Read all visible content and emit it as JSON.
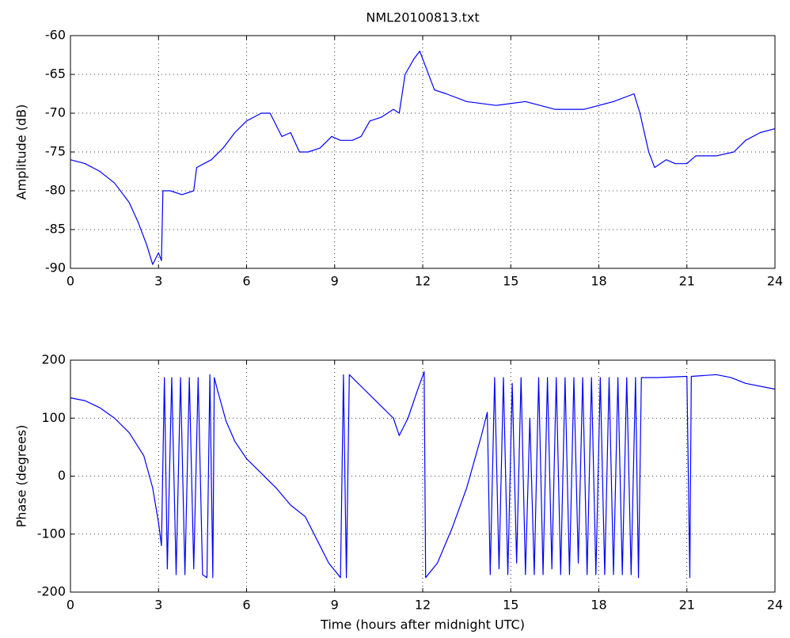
{
  "chart_data": [
    {
      "type": "line",
      "title": "NML20100813.txt",
      "ylabel": "Amplitude (dB)",
      "color": "#0000ff",
      "grid": true,
      "x": [
        0,
        0.5,
        1,
        1.5,
        2,
        2.3,
        2.6,
        2.8,
        3.0,
        3.1,
        3.15,
        3.4,
        3.8,
        4.2,
        4.3,
        4.8,
        5.2,
        5.6,
        6.0,
        6.5,
        6.8,
        7.2,
        7.5,
        7.8,
        8.1,
        8.5,
        8.9,
        9.2,
        9.6,
        9.9,
        10.2,
        10.6,
        11.0,
        11.2,
        11.4,
        11.7,
        11.9,
        12.1,
        12.4,
        12.8,
        13.5,
        14.5,
        15.5,
        16.5,
        17.5,
        18.5,
        19.2,
        19.4,
        19.7,
        19.9,
        20.3,
        20.6,
        21.0,
        21.3,
        22.0,
        22.6,
        23.0,
        23.5,
        24
      ],
      "values": [
        -76,
        -76.5,
        -77.5,
        -79,
        -81.5,
        -84,
        -87,
        -89.5,
        -88,
        -89,
        -80,
        -80,
        -80.5,
        -80,
        -77,
        -76,
        -74.5,
        -72.5,
        -71,
        -70,
        -70,
        -73,
        -72.5,
        -75,
        -75,
        -74.5,
        -73,
        -73.5,
        -73.5,
        -73,
        -71,
        -70.5,
        -69.5,
        -70,
        -65,
        -63,
        -62,
        -64,
        -67,
        -67.5,
        -68.5,
        -69,
        -68.5,
        -69.5,
        -69.5,
        -68.5,
        -67.5,
        -70,
        -75,
        -77,
        -76,
        -76.5,
        -76.5,
        -75.5,
        -75.5,
        -75,
        -73.5,
        -72.5,
        -72
      ],
      "xlim": [
        0,
        24
      ],
      "xticks": [
        0,
        3,
        6,
        9,
        12,
        15,
        18,
        21,
        24
      ],
      "ylim": [
        -90,
        -60
      ],
      "yticks": [
        -90,
        -85,
        -80,
        -75,
        -70,
        -65,
        -60
      ]
    },
    {
      "type": "line",
      "xlabel": "Time (hours after midnight UTC)",
      "ylabel": "Phase (degrees)",
      "color": "#0000ff",
      "grid": true,
      "x": [
        0,
        0.5,
        1,
        1.5,
        2,
        2.5,
        2.8,
        3.0,
        3.1,
        3.2,
        3.3,
        3.45,
        3.6,
        3.75,
        3.9,
        4.05,
        4.2,
        4.35,
        4.5,
        4.65,
        4.75,
        4.85,
        4.9,
        5.0,
        5.3,
        5.6,
        6.0,
        6.5,
        7.0,
        7.5,
        8.0,
        8.4,
        8.8,
        9.2,
        9.3,
        9.4,
        9.5,
        9.7,
        10,
        10.5,
        11.0,
        11.2,
        11.5,
        11.8,
        12.05,
        12.1,
        12.5,
        13.0,
        13.5,
        14.0,
        14.2,
        14.3,
        14.45,
        14.6,
        14.75,
        14.9,
        15.05,
        15.2,
        15.35,
        15.5,
        15.65,
        15.8,
        15.95,
        16.1,
        16.25,
        16.4,
        16.55,
        16.7,
        16.85,
        17.0,
        17.15,
        17.3,
        17.45,
        17.6,
        17.75,
        17.9,
        18.05,
        18.2,
        18.35,
        18.5,
        18.65,
        18.8,
        18.95,
        19.1,
        19.25,
        19.35,
        19.45,
        20,
        21,
        21.1,
        21.15,
        22,
        22.5,
        23,
        24
      ],
      "values": [
        135,
        130,
        118,
        100,
        75,
        35,
        -20,
        -80,
        -120,
        170,
        -160,
        170,
        -170,
        170,
        -170,
        170,
        -160,
        170,
        -170,
        -175,
        175,
        -175,
        170,
        150,
        95,
        60,
        30,
        5,
        -20,
        -50,
        -70,
        -110,
        -150,
        -175,
        175,
        -175,
        175,
        165,
        150,
        125,
        100,
        70,
        100,
        145,
        180,
        -175,
        -150,
        -90,
        -20,
        70,
        110,
        -170,
        170,
        -160,
        170,
        -170,
        160,
        -150,
        170,
        -170,
        100,
        -170,
        170,
        -170,
        170,
        -160,
        170,
        -170,
        170,
        -170,
        170,
        -150,
        170,
        -170,
        170,
        -170,
        170,
        -170,
        170,
        -170,
        170,
        -170,
        170,
        -170,
        170,
        -175,
        170,
        170,
        172,
        -175,
        172,
        175,
        170,
        160,
        150
      ],
      "xlim": [
        0,
        24
      ],
      "xticks": [
        0,
        3,
        6,
        9,
        12,
        15,
        18,
        21,
        24
      ],
      "ylim": [
        -200,
        200
      ],
      "yticks": [
        -200,
        -100,
        0,
        100,
        200
      ]
    }
  ]
}
